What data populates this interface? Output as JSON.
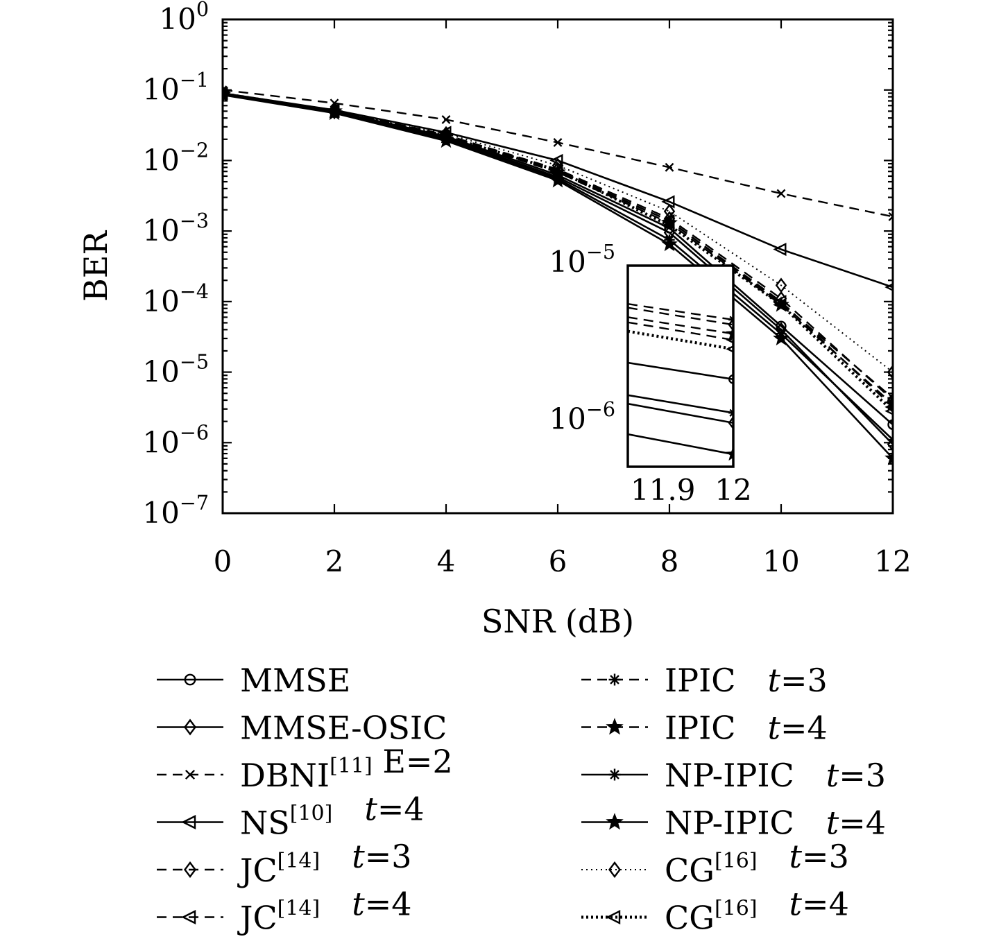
{
  "chart_data": {
    "type": "line",
    "title": "",
    "xlabel": "SNR (dB)",
    "ylabel": "BER",
    "x": [
      0,
      2,
      4,
      6,
      8,
      10,
      12
    ],
    "xticks": [
      "0",
      "2",
      "4",
      "6",
      "8",
      "10",
      "12"
    ],
    "yscale": "log",
    "ylim": [
      1e-07,
      1
    ],
    "xlim": [
      0,
      12
    ],
    "yticks": [
      {
        "base": "10",
        "exp": "0"
      },
      {
        "base": "10",
        "exp": "−1"
      },
      {
        "base": "10",
        "exp": "−2"
      },
      {
        "base": "10",
        "exp": "−3"
      },
      {
        "base": "10",
        "exp": "−4"
      },
      {
        "base": "10",
        "exp": "−5"
      },
      {
        "base": "10",
        "exp": "−6"
      },
      {
        "base": "10",
        "exp": "−7"
      }
    ],
    "grid": false,
    "legend_position": "bottom",
    "series": [
      {
        "name": "MMSE",
        "ref": "",
        "param": "",
        "dash": "solid",
        "marker": "circle",
        "values": [
          0.088,
          0.05,
          0.022,
          0.0062,
          0.0011,
          4.5e-05,
          1.8e-06
        ]
      },
      {
        "name": "MMSE-OSIC",
        "ref": "",
        "param": "",
        "dash": "solid",
        "marker": "diamond",
        "values": [
          0.087,
          0.049,
          0.021,
          0.0058,
          0.00095,
          4e-05,
          9.5e-07
        ]
      },
      {
        "name": "DBNI",
        "ref": "[11]",
        "param": " E=2",
        "dash": "dashed",
        "marker": "x",
        "values": [
          0.1,
          0.065,
          0.038,
          0.018,
          0.008,
          0.0034,
          0.0016
        ]
      },
      {
        "name": "NS",
        "ref": "[10]",
        "param": "t=4",
        "dash": "solid",
        "marker": "triangle-left",
        "values": [
          0.09,
          0.052,
          0.025,
          0.01,
          0.0026,
          0.00055,
          0.00016
        ]
      },
      {
        "name": "JC",
        "ref": "[14]",
        "param": "t=3",
        "dash": "dashed",
        "marker": "diamond",
        "values": [
          0.09,
          0.051,
          0.023,
          0.0075,
          0.0015,
          0.00011,
          4e-06
        ]
      },
      {
        "name": "JC",
        "ref": "[14]",
        "param": "t=4",
        "dash": "dashed",
        "marker": "triangle-left",
        "values": [
          0.089,
          0.05,
          0.022,
          0.007,
          0.0014,
          0.0001,
          3.2e-06
        ]
      },
      {
        "name": "IPIC",
        "ref": "",
        "param": "t=3",
        "dash": "dashed",
        "marker": "asterisk",
        "values": [
          0.09,
          0.051,
          0.023,
          0.0072,
          0.0014,
          9.5e-05,
          4.3e-06
        ]
      },
      {
        "name": "IPIC",
        "ref": "",
        "param": "t=4",
        "dash": "dashed",
        "marker": "star",
        "values": [
          0.089,
          0.05,
          0.022,
          0.0068,
          0.0013,
          9e-05,
          3.5e-06
        ]
      },
      {
        "name": "NP-IPIC",
        "ref": "",
        "param": "t=3",
        "dash": "solid",
        "marker": "asterisk",
        "values": [
          0.086,
          0.048,
          0.02,
          0.0055,
          0.00075,
          3.5e-05,
          1.1e-06
        ]
      },
      {
        "name": "NP-IPIC",
        "ref": "",
        "param": "t=4",
        "dash": "solid",
        "marker": "star",
        "values": [
          0.085,
          0.047,
          0.019,
          0.0052,
          0.00065,
          3e-05,
          6e-07
        ]
      },
      {
        "name": "CG",
        "ref": "[16]",
        "param": "t=3",
        "dash": "dotted",
        "marker": "diamond",
        "values": [
          0.09,
          0.052,
          0.024,
          0.0085,
          0.0019,
          0.00017,
          1e-05
        ]
      },
      {
        "name": "CG",
        "ref": "[16]",
        "param": "t=4",
        "dash": "dotted-thick",
        "marker": "triangle-left",
        "values": [
          0.089,
          0.05,
          0.022,
          0.0072,
          0.0012,
          9e-05,
          2.8e-06
        ]
      }
    ],
    "inset": {
      "xlim": [
        11.85,
        12
      ],
      "ylim": [
        5e-07,
        9.5e-06
      ],
      "xticks": [
        "11.9",
        "12"
      ],
      "yticks": [
        {
          "base": "10",
          "exp": "−5"
        },
        {
          "base": "10",
          "exp": "−6"
        }
      ]
    }
  }
}
